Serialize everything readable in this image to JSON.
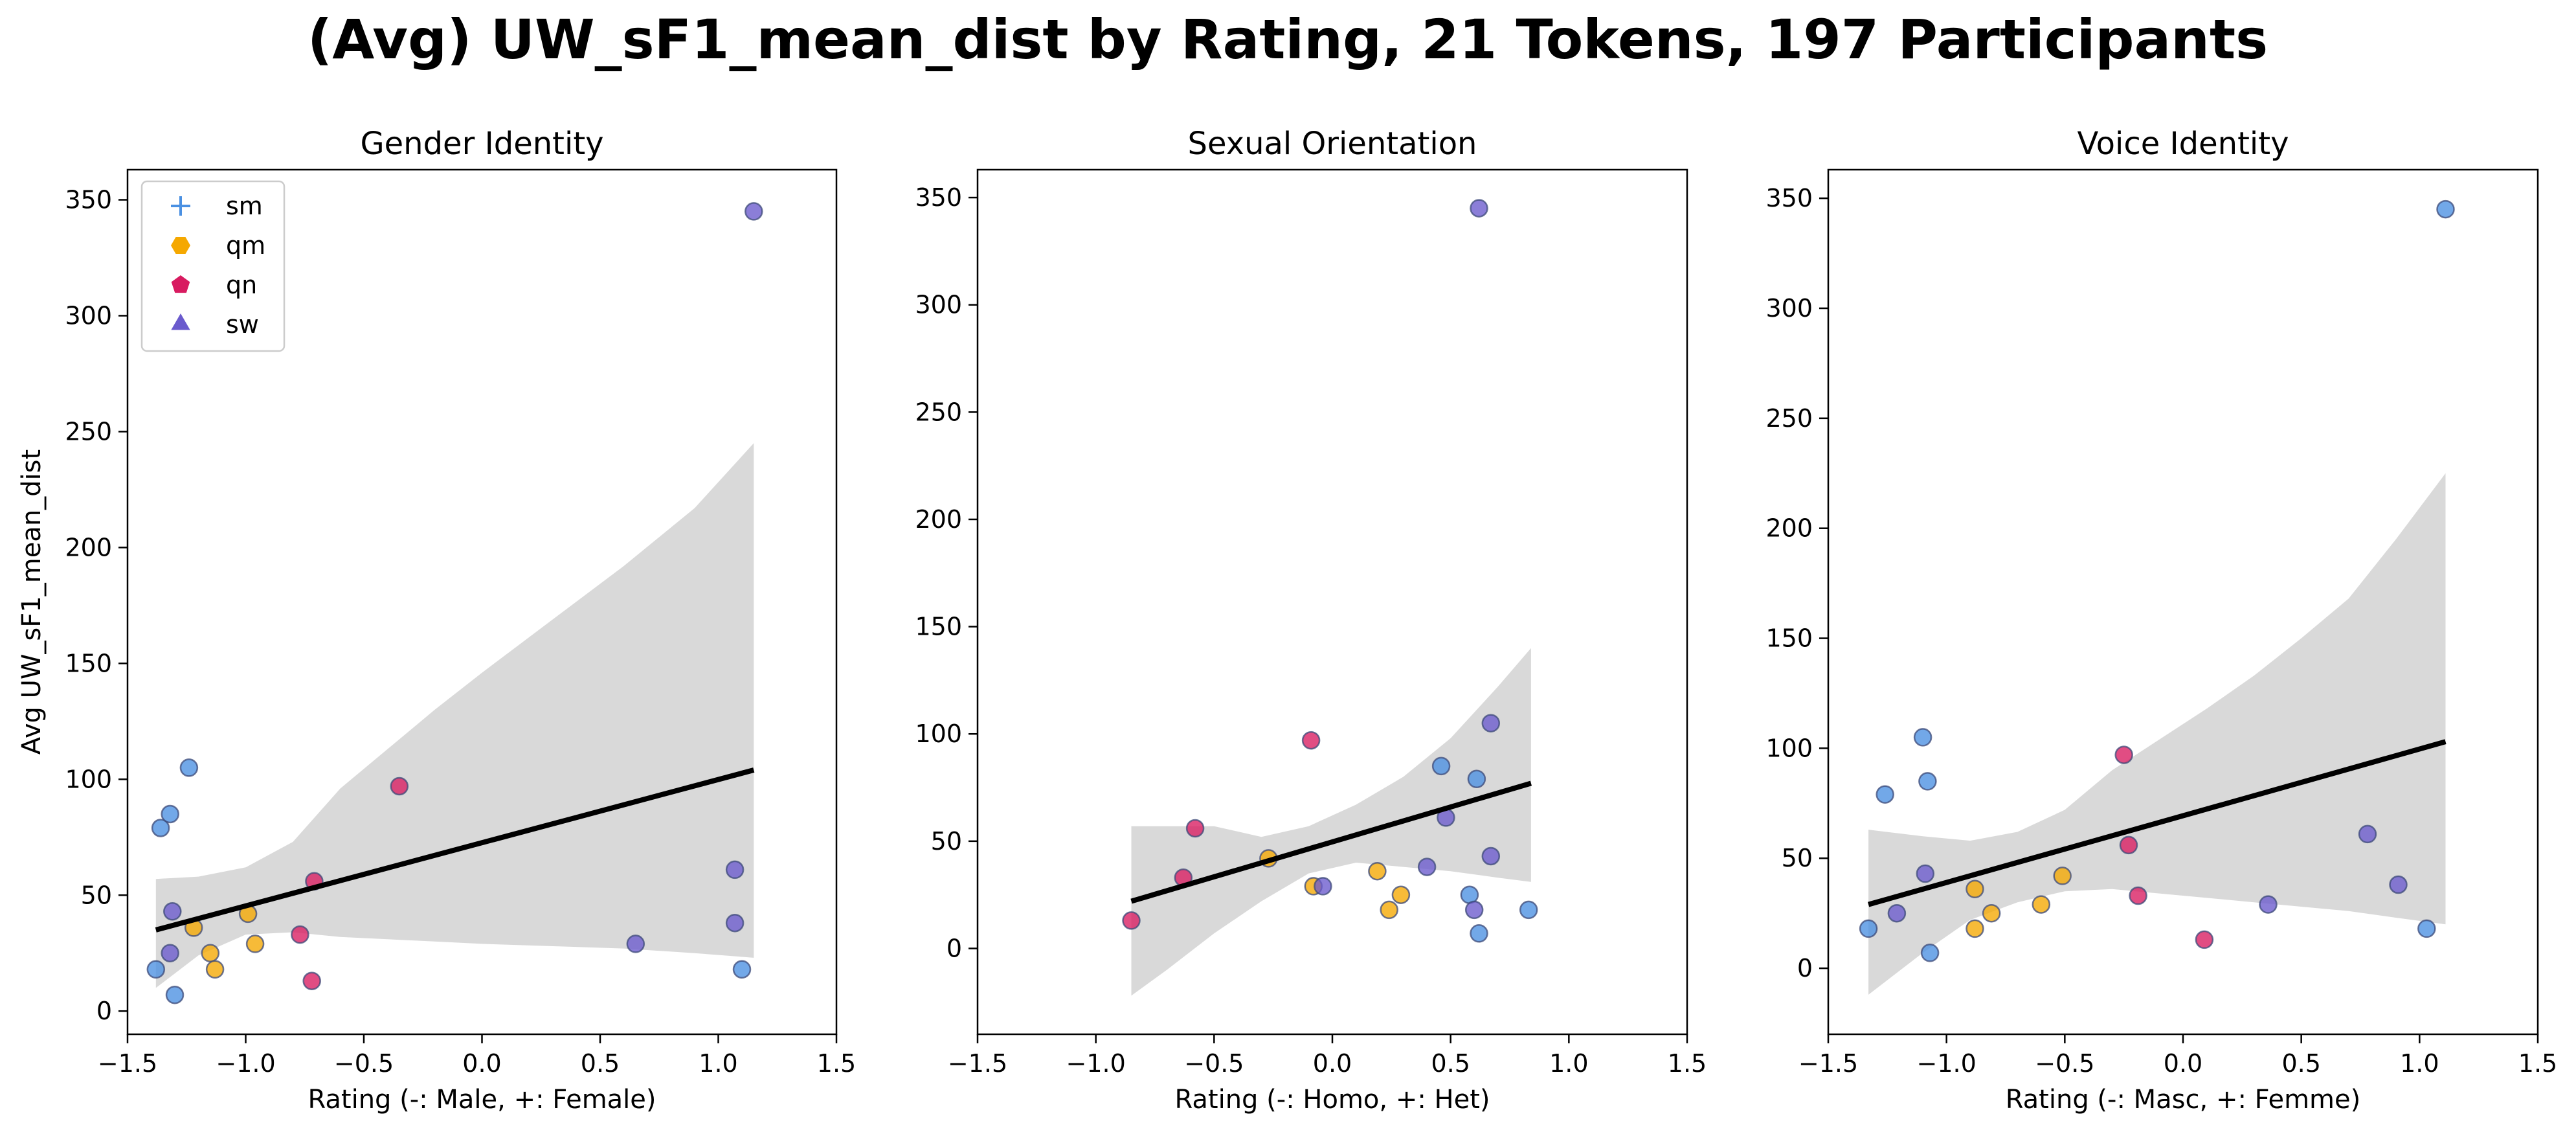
{
  "suptitle": "(Avg) UW_sF1_mean_dist by Rating, 21 Tokens, 197 Participants",
  "colors": {
    "sm": "#4a90e2",
    "qm": "#f5a800",
    "qn": "#d81b60",
    "sw": "#6a5acd",
    "band": "#d9d9d9",
    "regline": "#000000"
  },
  "legend": {
    "placement": "upper-left",
    "entries": [
      {
        "key": "sm",
        "label": "sm",
        "marker": "plus"
      },
      {
        "key": "qm",
        "label": "qm",
        "marker": "hexagon"
      },
      {
        "key": "qn",
        "label": "qn",
        "marker": "pentagon"
      },
      {
        "key": "sw",
        "label": "sw",
        "marker": "triangle"
      }
    ]
  },
  "chart_data": [
    {
      "type": "scatter",
      "title": "Gender Identity",
      "xlabel": "Rating (-: Male, +: Female)",
      "ylabel": "Avg UW_sF1_mean_dist",
      "xlim": [
        -1.5,
        1.5
      ],
      "ylim": [
        -10,
        363
      ],
      "xticks": [
        "−1.5",
        "−1.0",
        "−0.5",
        "0.0",
        "0.5",
        "1.0",
        "1.5"
      ],
      "yticks": [
        "0",
        "50",
        "100",
        "150",
        "200",
        "250",
        "300",
        "350"
      ],
      "show_legend": true,
      "grid": false,
      "regression": {
        "x": [
          -1.38,
          1.15
        ],
        "y": [
          35,
          104
        ]
      },
      "band": {
        "x": [
          -1.38,
          -1.2,
          -1.0,
          -0.8,
          -0.6,
          -0.4,
          -0.2,
          0.0,
          0.3,
          0.6,
          0.9,
          1.15
        ],
        "upper": [
          57,
          58,
          62,
          73,
          96,
          113,
          130,
          146,
          169,
          192,
          217,
          245
        ],
        "lower": [
          10,
          24,
          33,
          34,
          32,
          31,
          30,
          29,
          28,
          27,
          25,
          23
        ]
      },
      "points": [
        {
          "x": -1.38,
          "y": 18,
          "group": "sm"
        },
        {
          "x": -1.36,
          "y": 79,
          "group": "sm"
        },
        {
          "x": -1.32,
          "y": 85,
          "group": "sm"
        },
        {
          "x": -1.31,
          "y": 43,
          "group": "sw"
        },
        {
          "x": -1.32,
          "y": 25,
          "group": "sw"
        },
        {
          "x": -1.3,
          "y": 7,
          "group": "sm"
        },
        {
          "x": -1.24,
          "y": 105,
          "group": "sm"
        },
        {
          "x": -1.22,
          "y": 36,
          "group": "qm"
        },
        {
          "x": -1.15,
          "y": 25,
          "group": "qm"
        },
        {
          "x": -1.13,
          "y": 18,
          "group": "qm"
        },
        {
          "x": -0.99,
          "y": 42,
          "group": "qm"
        },
        {
          "x": -0.96,
          "y": 29,
          "group": "qm"
        },
        {
          "x": -0.77,
          "y": 33,
          "group": "qn"
        },
        {
          "x": -0.71,
          "y": 56,
          "group": "qn"
        },
        {
          "x": -0.72,
          "y": 13,
          "group": "qn"
        },
        {
          "x": -0.35,
          "y": 97,
          "group": "qn"
        },
        {
          "x": 0.65,
          "y": 29,
          "group": "sw"
        },
        {
          "x": 1.07,
          "y": 61,
          "group": "sw"
        },
        {
          "x": 1.07,
          "y": 38,
          "group": "sw"
        },
        {
          "x": 1.1,
          "y": 18,
          "group": "sm"
        },
        {
          "x": 1.15,
          "y": 345,
          "group": "sw"
        }
      ]
    },
    {
      "type": "scatter",
      "title": "Sexual Orientation",
      "xlabel": "Rating (-: Homo, +: Het)",
      "ylabel": "",
      "xlim": [
        -1.5,
        1.5
      ],
      "ylim": [
        -40,
        363
      ],
      "xticks": [
        "−1.5",
        "−1.0",
        "−0.5",
        "0.0",
        "0.5",
        "1.0",
        "1.5"
      ],
      "yticks": [
        "0",
        "50",
        "100",
        "150",
        "200",
        "250",
        "300",
        "350"
      ],
      "show_legend": false,
      "grid": false,
      "regression": {
        "x": [
          -0.85,
          0.84
        ],
        "y": [
          22,
          77
        ]
      },
      "band": {
        "x": [
          -0.85,
          -0.7,
          -0.5,
          -0.3,
          -0.1,
          0.1,
          0.3,
          0.5,
          0.7,
          0.84
        ],
        "upper": [
          57,
          57,
          57,
          52,
          57,
          67,
          80,
          98,
          122,
          140
        ],
        "lower": [
          -22,
          -10,
          7,
          22,
          35,
          40,
          38,
          36,
          33,
          31
        ]
      },
      "points": [
        {
          "x": -0.85,
          "y": 13,
          "group": "qn"
        },
        {
          "x": -0.63,
          "y": 33,
          "group": "qn"
        },
        {
          "x": -0.58,
          "y": 56,
          "group": "qn"
        },
        {
          "x": -0.27,
          "y": 42,
          "group": "qm"
        },
        {
          "x": -0.09,
          "y": 97,
          "group": "qn"
        },
        {
          "x": -0.08,
          "y": 29,
          "group": "qm"
        },
        {
          "x": -0.04,
          "y": 29,
          "group": "sw"
        },
        {
          "x": 0.19,
          "y": 36,
          "group": "qm"
        },
        {
          "x": 0.24,
          "y": 18,
          "group": "qm"
        },
        {
          "x": 0.29,
          "y": 25,
          "group": "qm"
        },
        {
          "x": 0.4,
          "y": 38,
          "group": "sw"
        },
        {
          "x": 0.46,
          "y": 85,
          "group": "sm"
        },
        {
          "x": 0.48,
          "y": 61,
          "group": "sw"
        },
        {
          "x": 0.58,
          "y": 25,
          "group": "sm"
        },
        {
          "x": 0.6,
          "y": 18,
          "group": "sw"
        },
        {
          "x": 0.61,
          "y": 79,
          "group": "sm"
        },
        {
          "x": 0.62,
          "y": 7,
          "group": "sm"
        },
        {
          "x": 0.62,
          "y": 345,
          "group": "sw"
        },
        {
          "x": 0.67,
          "y": 105,
          "group": "sw"
        },
        {
          "x": 0.67,
          "y": 43,
          "group": "sw"
        },
        {
          "x": 0.83,
          "y": 18,
          "group": "sm"
        }
      ]
    },
    {
      "type": "scatter",
      "title": "Voice Identity",
      "xlabel": "Rating (-: Masc, +: Femme)",
      "ylabel": "",
      "xlim": [
        -1.5,
        1.5
      ],
      "ylim": [
        -30,
        363
      ],
      "xticks": [
        "−1.5",
        "−1.0",
        "−0.5",
        "0.0",
        "0.5",
        "1.0",
        "1.5"
      ],
      "yticks": [
        "0",
        "50",
        "100",
        "150",
        "200",
        "250",
        "300",
        "350"
      ],
      "show_legend": false,
      "grid": false,
      "regression": {
        "x": [
          -1.33,
          1.11
        ],
        "y": [
          29,
          103
        ]
      },
      "band": {
        "x": [
          -1.33,
          -1.1,
          -0.9,
          -0.7,
          -0.5,
          -0.3,
          -0.1,
          0.1,
          0.3,
          0.5,
          0.7,
          0.9,
          1.11
        ],
        "upper": [
          63,
          60,
          58,
          62,
          72,
          90,
          104,
          118,
          133,
          150,
          168,
          195,
          225
        ],
        "lower": [
          -12,
          7,
          22,
          30,
          35,
          36,
          34,
          32,
          30,
          28,
          26,
          23,
          20
        ]
      },
      "points": [
        {
          "x": -1.33,
          "y": 18,
          "group": "sm"
        },
        {
          "x": -1.26,
          "y": 79,
          "group": "sm"
        },
        {
          "x": -1.21,
          "y": 25,
          "group": "sw"
        },
        {
          "x": -1.1,
          "y": 105,
          "group": "sm"
        },
        {
          "x": -1.08,
          "y": 85,
          "group": "sm"
        },
        {
          "x": -1.09,
          "y": 43,
          "group": "sw"
        },
        {
          "x": -1.07,
          "y": 7,
          "group": "sm"
        },
        {
          "x": -0.88,
          "y": 36,
          "group": "qm"
        },
        {
          "x": -0.88,
          "y": 18,
          "group": "qm"
        },
        {
          "x": -0.81,
          "y": 25,
          "group": "qm"
        },
        {
          "x": -0.6,
          "y": 29,
          "group": "qm"
        },
        {
          "x": -0.51,
          "y": 42,
          "group": "qm"
        },
        {
          "x": -0.25,
          "y": 97,
          "group": "qn"
        },
        {
          "x": -0.23,
          "y": 56,
          "group": "qn"
        },
        {
          "x": -0.19,
          "y": 33,
          "group": "qn"
        },
        {
          "x": 0.09,
          "y": 13,
          "group": "qn"
        },
        {
          "x": 0.36,
          "y": 29,
          "group": "sw"
        },
        {
          "x": 0.78,
          "y": 61,
          "group": "sw"
        },
        {
          "x": 0.91,
          "y": 38,
          "group": "sw"
        },
        {
          "x": 1.03,
          "y": 18,
          "group": "sm"
        },
        {
          "x": 1.11,
          "y": 345,
          "group": "sm"
        }
      ]
    }
  ]
}
